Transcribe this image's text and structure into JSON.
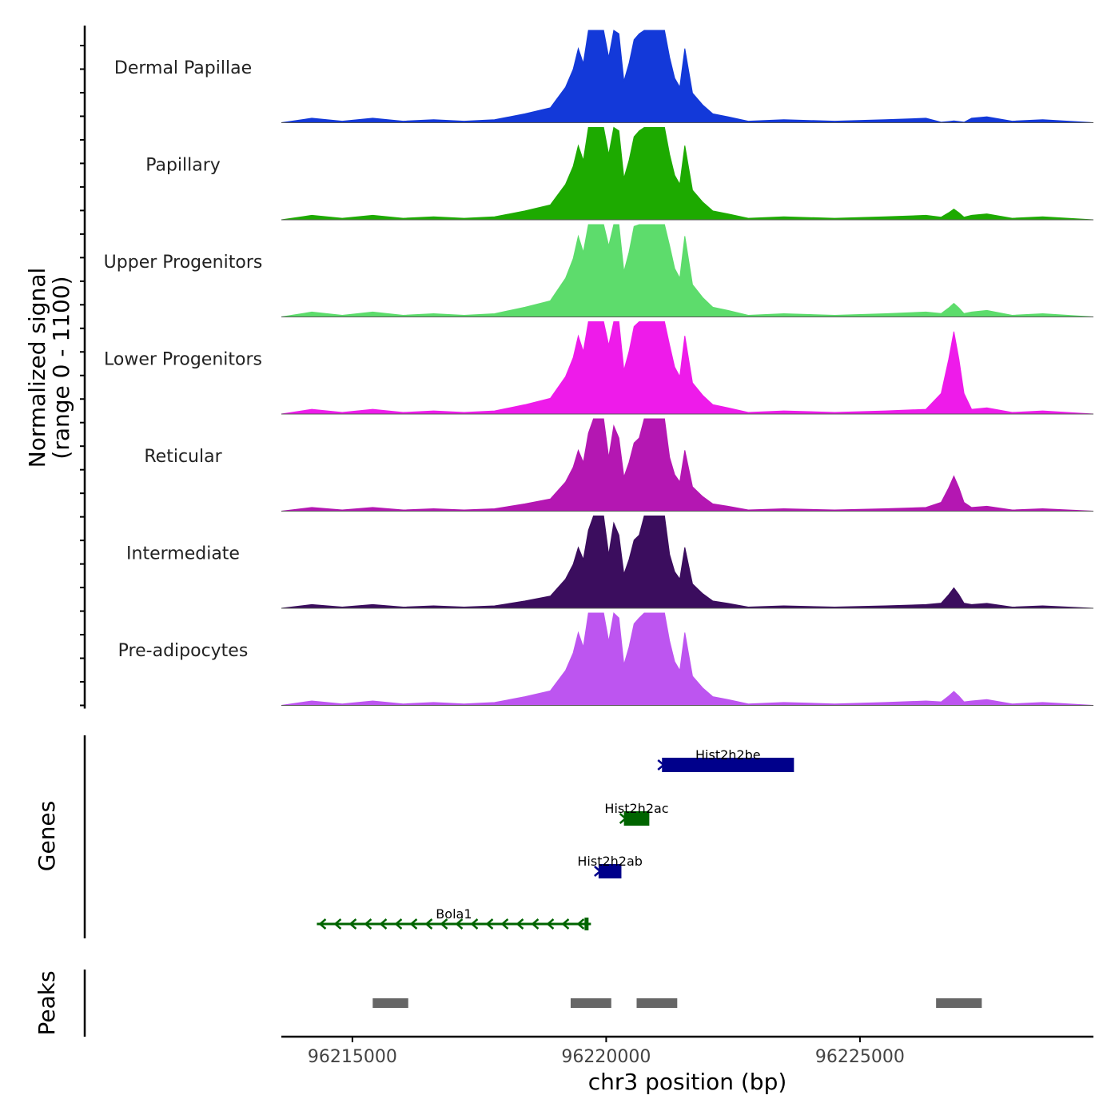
{
  "chart_data": {
    "type": "area",
    "title": "",
    "ylabel": "Normalized signal\n(range 0 - 1100)",
    "ylabel_lines": [
      "Normalized signal",
      "(range 0 - 1100)"
    ],
    "ylim": [
      0,
      1100
    ],
    "xlabel": "chr3 position (bp)",
    "xlim": [
      96213600,
      96229600
    ],
    "x_ticks": [
      96215000,
      96220000,
      96225000
    ],
    "x_tick_labels": [
      "96215000",
      "96220000",
      "96225000"
    ],
    "profile": {
      "x": [
        96213600,
        96214200,
        96214800,
        96215400,
        96216000,
        96216600,
        96217200,
        96217800,
        96218400,
        96218900,
        96219200,
        96219350,
        96219450,
        96219550,
        96219650,
        96219750,
        96219850,
        96219950,
        96220050,
        96220150,
        96220250,
        96220350,
        96220450,
        96220550,
        96220650,
        96220750,
        96220850,
        96220950,
        96221050,
        96221150,
        96221250,
        96221350,
        96221450,
        96221550,
        96221700,
        96221900,
        96222100,
        96222400,
        96222800,
        96223500,
        96224500,
        96225500,
        96226300,
        96226600,
        96226750,
        96226850,
        96226950,
        96227050,
        96227200,
        96227500,
        96228000,
        96228600,
        96229600
      ],
      "shape": [
        0.0,
        0.015,
        0.005,
        0.015,
        0.005,
        0.01,
        0.005,
        0.01,
        0.03,
        0.05,
        0.12,
        0.18,
        0.25,
        0.2,
        0.32,
        0.45,
        0.95,
        0.55,
        0.22,
        0.35,
        0.3,
        0.14,
        0.2,
        0.28,
        0.3,
        0.42,
        0.55,
        0.9,
        0.65,
        0.38,
        0.22,
        0.15,
        0.12,
        0.25,
        0.1,
        0.06,
        0.03,
        0.02,
        0.005,
        0.01,
        0.005,
        0.01,
        0.015,
        0.03,
        0.08,
        0.12,
        0.08,
        0.03,
        0.015,
        0.02,
        0.005,
        0.01,
        0.0
      ]
    },
    "series": [
      {
        "name": "Dermal Papillae",
        "color": "#1339d9",
        "scale": 560,
        "peak_right_scale": 1.0,
        "late_peak_scale": 0.05
      },
      {
        "name": "Papillary",
        "color": "#1daa00",
        "scale": 560,
        "peak_right_scale": 1.0,
        "late_peak_scale": 0.3
      },
      {
        "name": "Upper Progenitors",
        "color": "#5ddc6c",
        "scale": 610,
        "peak_right_scale": 0.97,
        "late_peak_scale": 0.35
      },
      {
        "name": "Lower Progenitors",
        "color": "#ee1bea",
        "scale": 590,
        "peak_right_scale": 0.98,
        "late_peak_scale": 2.2
      },
      {
        "name": "Reticular",
        "color": "#b417b2",
        "scale": 460,
        "peak_right_scale": 1.03,
        "late_peak_scale": 1.2
      },
      {
        "name": "Intermediate",
        "color": "#3b0d5e",
        "scale": 460,
        "peak_right_scale": 1.0,
        "late_peak_scale": 0.7
      },
      {
        "name": "Pre-adipocytes",
        "color": "#bd55f0",
        "scale": 550,
        "peak_right_scale": 1.45,
        "late_peak_scale": 0.4
      }
    ],
    "genes_label": "Genes",
    "genes": [
      {
        "name": "Hist2h2be",
        "start": 96221100,
        "end": 96223700,
        "strand": "+",
        "color": "#00008b",
        "row": 1
      },
      {
        "name": "Hist2h2ac",
        "start": 96220350,
        "end": 96220850,
        "strand": "+",
        "color": "#006400",
        "row": 2
      },
      {
        "name": "Hist2h2ab",
        "start": 96219850,
        "end": 96220300,
        "strand": "+",
        "color": "#00008b",
        "row": 3
      },
      {
        "name": "Bola1",
        "start": 96214300,
        "end": 96219700,
        "strand": "-",
        "color": "#006400",
        "row": 4
      }
    ],
    "peaks_label": "Peaks",
    "peaks_color": "#666666",
    "peaks": [
      {
        "start": 96215400,
        "end": 96216100
      },
      {
        "start": 96219300,
        "end": 96220100
      },
      {
        "start": 96220600,
        "end": 96221400
      },
      {
        "start": 96226500,
        "end": 96227400
      }
    ]
  }
}
